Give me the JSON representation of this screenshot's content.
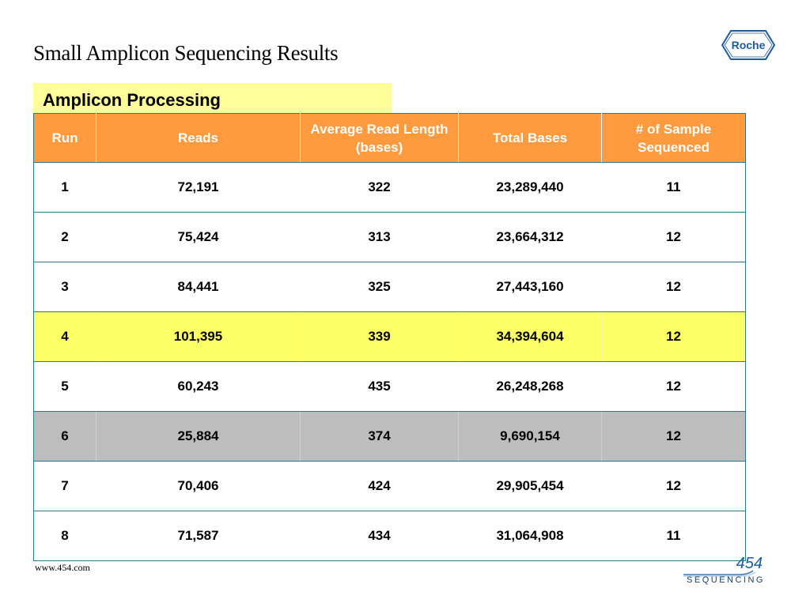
{
  "slide": {
    "title": "Small Amplicon Sequencing Results",
    "section_label": "Amplicon Processing"
  },
  "logo": {
    "text": "Roche",
    "color": "#1d5a9e"
  },
  "colors": {
    "header_bg": "#ff9b3e",
    "label_bg": "#ffff99",
    "highlight_row": "#ffff66",
    "gray_row": "#bdbdbd",
    "border": "#2f7a8a"
  },
  "table": {
    "headers": [
      "Run",
      "Reads",
      "Average Read Length (bases)",
      "Total Bases",
      "# of Sample Sequenced"
    ],
    "rows": [
      {
        "cells": [
          "1",
          "72,191",
          "322",
          "23,289,440",
          "11"
        ],
        "style": "normal"
      },
      {
        "cells": [
          "2",
          "75,424",
          "313",
          "23,664,312",
          "12"
        ],
        "style": "normal"
      },
      {
        "cells": [
          "3",
          "84,441",
          "325",
          "27,443,160",
          "12"
        ],
        "style": "normal"
      },
      {
        "cells": [
          "4",
          "101,395",
          "339",
          "34,394,604",
          "12"
        ],
        "style": "yellow"
      },
      {
        "cells": [
          "5",
          "60,243",
          "435",
          "26,248,268",
          "12"
        ],
        "style": "normal"
      },
      {
        "cells": [
          "6",
          "25,884",
          "374",
          "9,690,154",
          "12"
        ],
        "style": "gray"
      },
      {
        "cells": [
          "7",
          "70,406",
          "424",
          "29,905,454",
          "12"
        ],
        "style": "normal"
      },
      {
        "cells": [
          "8",
          "71,587",
          "434",
          "31,064,908",
          "11"
        ],
        "style": "normal"
      }
    ]
  },
  "footer": {
    "url": "www.454.com",
    "brand_number": "454",
    "brand_word": "SEQUENCING"
  }
}
